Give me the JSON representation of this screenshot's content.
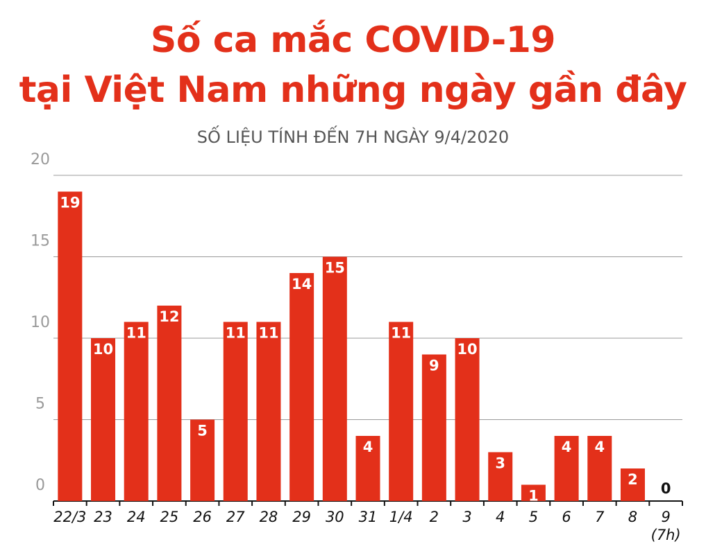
{
  "chart_data": {
    "type": "bar",
    "title": "Số ca mắc COVID-19",
    "title_line2": "tại Việt Nam những ngày gần đây",
    "subtitle": "SỐ LIỆU TÍNH ĐẾN 7H NGÀY 9/4/2020",
    "categories": [
      "22/3",
      "23",
      "24",
      "25",
      "26",
      "27",
      "28",
      "29",
      "30",
      "31",
      "1/4",
      "2",
      "3",
      "4",
      "5",
      "6",
      "7",
      "8",
      "9\n(7h)"
    ],
    "values": [
      19,
      10,
      11,
      12,
      5,
      11,
      11,
      14,
      15,
      4,
      11,
      9,
      10,
      3,
      1,
      4,
      4,
      2,
      0
    ],
    "color": "#e3301a",
    "ylim": [
      0,
      20
    ],
    "yticks": [
      0,
      5,
      10,
      15,
      20
    ],
    "grid": true
  }
}
